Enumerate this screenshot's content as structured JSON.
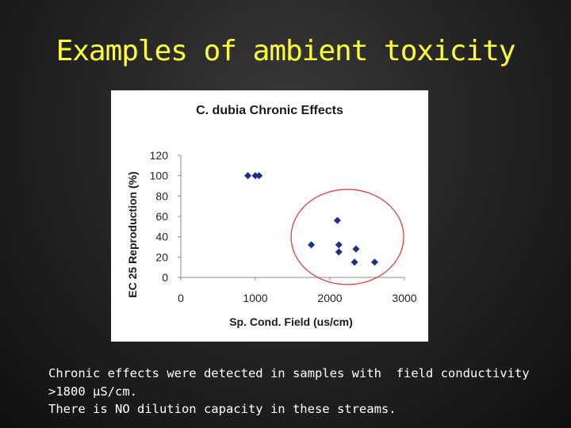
{
  "slide": {
    "title": "Examples of ambient toxicity",
    "caption_lines": [
      "Chronic effects were detected in samples with  field conductivity",
      ">1800 µS/cm.",
      "There is NO dilution capacity in these streams."
    ]
  },
  "colors": {
    "title": "#ffff33",
    "marker": "#1a2e8c",
    "highlight_ellipse": "#e03030"
  },
  "chart_data": {
    "type": "scatter",
    "title": "C. dubia Chronic Effects",
    "xlabel": "Sp. Cond. Field (us/cm)",
    "ylabel": "EC 25 Reproduction (%)",
    "xlim": [
      0,
      3000
    ],
    "ylim": [
      0,
      120
    ],
    "xticks": [
      0,
      1000,
      2000,
      3000
    ],
    "yticks": [
      0,
      20,
      40,
      60,
      80,
      100,
      120
    ],
    "grid": false,
    "marker": "diamond",
    "annotation": "red ellipse around high-conductivity points",
    "points": [
      {
        "x": 900,
        "y": 100
      },
      {
        "x": 1000,
        "y": 100
      },
      {
        "x": 1050,
        "y": 100
      },
      {
        "x": 1750,
        "y": 32
      },
      {
        "x": 2100,
        "y": 56
      },
      {
        "x": 2120,
        "y": 32
      },
      {
        "x": 2120,
        "y": 25
      },
      {
        "x": 2350,
        "y": 28
      },
      {
        "x": 2330,
        "y": 15
      },
      {
        "x": 2600,
        "y": 15
      }
    ]
  }
}
